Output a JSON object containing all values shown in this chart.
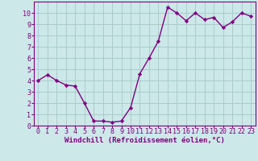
{
  "x": [
    0,
    1,
    2,
    3,
    4,
    5,
    6,
    7,
    8,
    9,
    10,
    11,
    12,
    13,
    14,
    15,
    16,
    17,
    18,
    19,
    20,
    21,
    22,
    23
  ],
  "y": [
    4.0,
    4.5,
    4.0,
    3.6,
    3.5,
    2.0,
    0.4,
    0.4,
    0.3,
    0.4,
    1.6,
    4.6,
    6.0,
    7.5,
    10.5,
    10.0,
    9.3,
    10.0,
    9.4,
    9.6,
    8.7,
    9.2,
    10.0,
    9.7
  ],
  "line_color": "#800080",
  "marker": "D",
  "marker_size": 2.2,
  "bg_color": "#cce8e8",
  "grid_color": "#aacccc",
  "xlabel": "Windchill (Refroidissement éolien,°C)",
  "xlim": [
    -0.5,
    23.5
  ],
  "ylim": [
    0,
    11
  ],
  "yticks": [
    0,
    1,
    2,
    3,
    4,
    5,
    6,
    7,
    8,
    9,
    10
  ],
  "xticks": [
    0,
    1,
    2,
    3,
    4,
    5,
    6,
    7,
    8,
    9,
    10,
    11,
    12,
    13,
    14,
    15,
    16,
    17,
    18,
    19,
    20,
    21,
    22,
    23
  ],
  "axis_color": "#800080",
  "tick_color": "#800080",
  "label_color": "#800080",
  "font_size_xlabel": 6.5,
  "font_size_ticks": 6.0,
  "linewidth": 1.0
}
